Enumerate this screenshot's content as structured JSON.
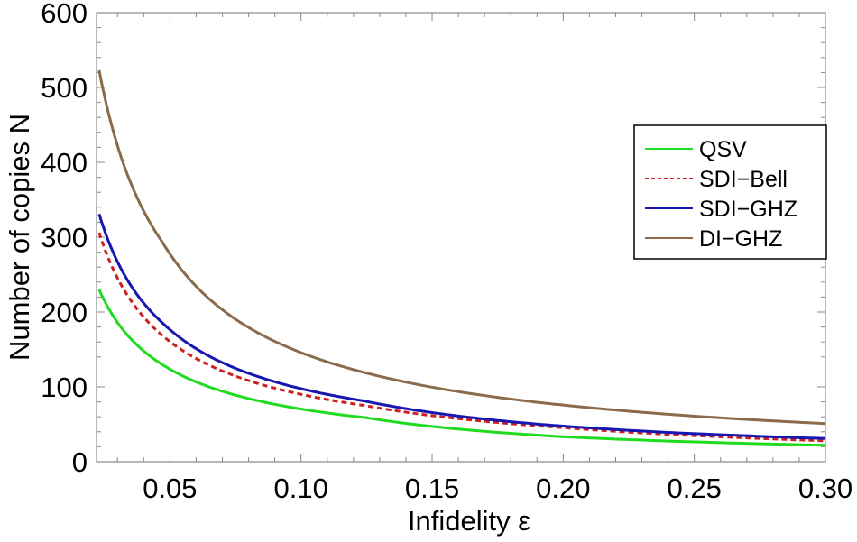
{
  "chart_data": {
    "type": "line",
    "title": "",
    "xlabel": "Infidelity ε",
    "ylabel": "Number of copies N",
    "xlim": [
      0.022,
      0.3
    ],
    "ylim": [
      0,
      600
    ],
    "xticks": [
      "0.05",
      "0.10",
      "0.15",
      "0.20",
      "0.25",
      "0.30"
    ],
    "xtick_values": [
      0.05,
      0.1,
      0.15,
      0.2,
      0.25,
      0.3
    ],
    "yticks": [
      "0",
      "100",
      "200",
      "300",
      "400",
      "500",
      "600"
    ],
    "ytick_values": [
      0,
      100,
      200,
      300,
      400,
      500,
      600
    ],
    "grid": false,
    "legend_position": "right",
    "x": [
      0.023,
      0.047,
      0.1244,
      0.202,
      0.3
    ],
    "series": [
      {
        "name": "QSV",
        "color": "#1fdc1f",
        "style": "solid",
        "values": [
          230,
          130,
          59,
          33,
          22
        ]
      },
      {
        "name": "SDI−Bell",
        "color": "#cc2020",
        "style": "dashed",
        "values": [
          306,
          169,
          75,
          45,
          28
        ]
      },
      {
        "name": "SDI−GHZ",
        "color": "#1616b0",
        "style": "solid",
        "values": [
          331,
          186,
          81,
          47,
          31
        ]
      },
      {
        "name": "DI−GHZ",
        "color": "#8b6b4b",
        "style": "solid",
        "values": [
          523,
          294,
          119,
          75,
          51
        ]
      }
    ]
  }
}
